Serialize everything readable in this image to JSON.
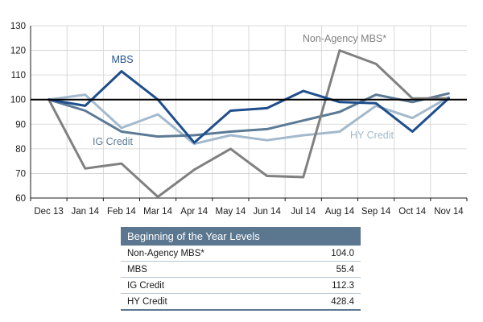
{
  "chart_data": {
    "type": "line",
    "categories": [
      "Dec 13",
      "Jan 14",
      "Feb 14",
      "Mar 14",
      "Apr 14",
      "May 14",
      "Jun 14",
      "Jul 14",
      "Aug 14",
      "Sep 14",
      "Oct 14",
      "Nov 14"
    ],
    "ylim": [
      60,
      130
    ],
    "yticks": [
      60,
      70,
      80,
      90,
      100,
      110,
      120,
      130
    ],
    "reference_line": 100,
    "series": [
      {
        "name": "MBS",
        "label": "MBS",
        "color": "#1f4e8c",
        "values": [
          100,
          97.5,
          111.5,
          100,
          82.5,
          95.5,
          96.5,
          103.5,
          99,
          98.5,
          87,
          100.5
        ]
      },
      {
        "name": "IG Credit",
        "label": "IG Credit",
        "color": "#5b7a95",
        "values": [
          100,
          95.5,
          87,
          85,
          85.5,
          87,
          88,
          91.5,
          95,
          102,
          99,
          102.5
        ]
      },
      {
        "name": "HY Credit",
        "label": "HY Credit",
        "color": "#a3b9cc",
        "values": [
          100,
          102,
          88.5,
          94,
          82,
          85.5,
          83.5,
          85.5,
          87,
          97.5,
          92.5,
          101
        ]
      },
      {
        "name": "Non-Agency MBS*",
        "label": "Non-Agency MBS*",
        "color": "#808080",
        "values": [
          100,
          72,
          74,
          60.5,
          71.5,
          80,
          69,
          68.5,
          120,
          114.5,
          100.5,
          100.5
        ]
      }
    ],
    "table": {
      "title": "Beginning of the Year Levels",
      "rows": [
        {
          "name": "Non-Agency MBS*",
          "value": "104.0"
        },
        {
          "name": "MBS",
          "value": "55.4"
        },
        {
          "name": "IG Credit",
          "value": "112.3"
        },
        {
          "name": "HY Credit",
          "value": "428.4"
        }
      ]
    }
  }
}
